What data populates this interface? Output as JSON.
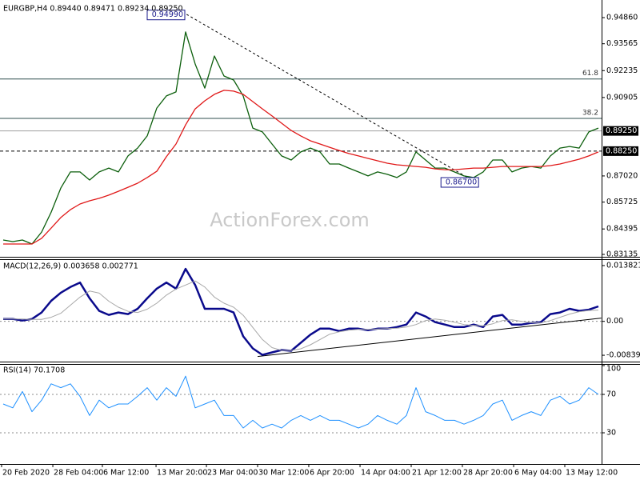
{
  "chart_data": [
    {
      "type": "line",
      "title": "EURGBP,H4  0.89440 0.89471 0.89234 0.89250",
      "xlim": [
        0,
        62
      ],
      "ylim": [
        0.83056,
        0.95652
      ],
      "yticks": [
        {
          "value": 0.9486,
          "label": "0.94860"
        },
        0.93565,
        0.92235,
        0.90905,
        {
          "value": 0.8702,
          "label": "0.87020"
        },
        0.85725,
        0.84395,
        0.83135
      ],
      "series": [
        {
          "color": "#0b5e0b",
          "values": [
            0.8385,
            0.8377,
            0.8385,
            0.8365,
            0.8424,
            0.8523,
            0.8642,
            0.8722,
            0.8722,
            0.8682,
            0.8722,
            0.8741,
            0.8722,
            0.8801,
            0.884,
            0.89,
            0.9038,
            0.9098,
            0.9118,
            0.9415,
            0.9256,
            0.9137,
            0.9296,
            0.9197,
            0.9177,
            0.9098,
            0.8939,
            0.892,
            0.886,
            0.8801,
            0.8781,
            0.8821,
            0.884,
            0.8821,
            0.8761,
            0.8761,
            0.8741,
            0.8722,
            0.8702,
            0.8722,
            0.871,
            0.8694,
            0.8722,
            0.8821,
            0.8781,
            0.8741,
            0.8741,
            0.8722,
            0.8702,
            0.8694,
            0.8722,
            0.8781,
            0.8781,
            0.8722,
            0.8741,
            0.8749,
            0.8741,
            0.8801,
            0.884,
            0.8848,
            0.884,
            0.892,
            0.8939
          ]
        },
        {
          "color": "#e01818",
          "values": [
            0.8365,
            0.8365,
            0.8365,
            0.8365,
            0.8393,
            0.8444,
            0.8496,
            0.8535,
            0.8563,
            0.8579,
            0.8591,
            0.8607,
            0.8626,
            0.8646,
            0.8666,
            0.8694,
            0.8725,
            0.8797,
            0.886,
            0.8955,
            0.9034,
            0.9074,
            0.9106,
            0.9126,
            0.9122,
            0.9106,
            0.907,
            0.9034,
            0.8999,
            0.8963,
            0.8927,
            0.89,
            0.8876,
            0.886,
            0.8844,
            0.8828,
            0.8813,
            0.8801,
            0.8789,
            0.8777,
            0.8765,
            0.8757,
            0.8753,
            0.8749,
            0.8745,
            0.8737,
            0.8733,
            0.8733,
            0.8737,
            0.8741,
            0.8741,
            0.8745,
            0.8749,
            0.8749,
            0.8749,
            0.8749,
            0.8749,
            0.8753,
            0.8761,
            0.8773,
            0.8785,
            0.8801,
            0.8821
          ]
        }
      ],
      "hlines": [
        {
          "value": 0.9182,
          "label": "61.8",
          "color": "#2f4f4f",
          "dash": false,
          "place": "inside"
        },
        {
          "value": 0.8987,
          "label": "38.2",
          "color": "#2f4f4f",
          "dash": false,
          "place": "inside"
        },
        {
          "value": 0.8925,
          "label": "0.89250",
          "color": "#a0a0a0",
          "dash": false,
          "place": "axis"
        },
        {
          "value": 0.8825,
          "label": "0.88250",
          "color": "#000000",
          "dash": true,
          "place": "axis"
        }
      ],
      "annotations": [
        {
          "x": 19,
          "value": 0.9499,
          "label": "0.94990"
        },
        {
          "x": 49.6,
          "value": 0.867,
          "label": "0.86700"
        }
      ],
      "trendlines": [
        {
          "from": [
            19.1,
            0.9502
          ],
          "to": [
            48.8,
            0.8682
          ],
          "dash": true
        }
      ],
      "watermark": "ActionForex.com"
    },
    {
      "type": "line",
      "title": "MACD(12,26,9) 0.003658 0.002771",
      "xlim": [
        0,
        62
      ],
      "ylim": [
        -0.00997,
        0.0148
      ],
      "yticks": [
        0.013821,
        {
          "value": 0,
          "label": "0.00"
        },
        -0.008397
      ],
      "levels": [
        0
      ],
      "series": [
        {
          "color": "#0a0a8c",
          "width": 2.5,
          "values": [
            0.0006,
            0.0006,
            0.0002,
            0.0006,
            0.0022,
            0.0051,
            0.0071,
            0.0085,
            0.0096,
            0.0057,
            0.0026,
            0.0016,
            0.0022,
            0.0018,
            0.0031,
            0.0057,
            0.0081,
            0.0096,
            0.0081,
            0.013,
            0.009,
            0.0031,
            0.0031,
            0.0031,
            0.0022,
            -0.0037,
            -0.0067,
            -0.0083,
            -0.0077,
            -0.0071,
            -0.0073,
            -0.0053,
            -0.0033,
            -0.0018,
            -0.0018,
            -0.0024,
            -0.0018,
            -0.0018,
            -0.0022,
            -0.0018,
            -0.0018,
            -0.0014,
            -0.0008,
            0.0022,
            0.0012,
            -0.0002,
            -0.0008,
            -0.0014,
            -0.0014,
            -0.0008,
            -0.0014,
            0.0012,
            0.0016,
            -0.0008,
            -0.0008,
            -0.0004,
            -0.0002,
            0.0018,
            0.0022,
            0.0031,
            0.0026,
            0.0029,
            0.0037
          ]
        },
        {
          "color": "#a8a8a8",
          "width": 1,
          "values": [
            0.0006,
            0.0006,
            0.0006,
            0.0005,
            0.0005,
            0.001,
            0.002,
            0.004,
            0.006,
            0.0075,
            0.007,
            0.005,
            0.0035,
            0.0025,
            0.0022,
            0.003,
            0.0045,
            0.0065,
            0.008,
            0.009,
            0.01,
            0.0085,
            0.006,
            0.0045,
            0.0035,
            0.0015,
            -0.0015,
            -0.0045,
            -0.0065,
            -0.0072,
            -0.0072,
            -0.0068,
            -0.0058,
            -0.0045,
            -0.0032,
            -0.0026,
            -0.0022,
            -0.002,
            -0.002,
            -0.0019,
            -0.0018,
            -0.0017,
            -0.0014,
            -0.0008,
            0.0002,
            0.0006,
            0.0003,
            -0.0002,
            -0.0008,
            -0.001,
            -0.0011,
            -0.0006,
            0.0002,
            0.0004,
            0.0,
            -0.0003,
            -0.0004,
            0.0002,
            0.001,
            0.0018,
            0.0024,
            0.0027,
            0.0028
          ]
        }
      ],
      "trendlines": [
        {
          "from": [
            26.5,
            -0.0087
          ],
          "to": [
            62.3,
            0.0008
          ],
          "dash": false
        }
      ]
    },
    {
      "type": "line",
      "title": "RSI(14) 70.1708",
      "xlim": [
        0,
        62
      ],
      "ylim": [
        0,
        100
      ],
      "yticks": [
        100,
        70,
        30
      ],
      "levels": [
        70,
        30
      ],
      "series": [
        {
          "color": "#1e90ff",
          "width": 1,
          "values": [
            60,
            56,
            73,
            52,
            64,
            81,
            77,
            81,
            68,
            48,
            64,
            56,
            60,
            60,
            68,
            77,
            64,
            77,
            68,
            89,
            56,
            60,
            64,
            48,
            48,
            35,
            43,
            35,
            39,
            35,
            43,
            48,
            43,
            48,
            43,
            43,
            39,
            35,
            39,
            48,
            43,
            39,
            48,
            77,
            52,
            48,
            43,
            43,
            39,
            43,
            48,
            60,
            64,
            43,
            48,
            52,
            48,
            64,
            68,
            60,
            64,
            77,
            70
          ]
        }
      ],
      "xticks": [
        {
          "value": -0.17,
          "label": "20 Feb 2020"
        },
        {
          "value": 5.17,
          "label": "28 Feb 04:00"
        },
        {
          "value": 10.33,
          "label": "6 Mar 12:00"
        },
        {
          "value": 15.92,
          "label": "13 Mar 20:00"
        },
        {
          "value": 21.17,
          "label": "23 Mar 04:00"
        },
        {
          "value": 26.5,
          "label": "30 Mar 12:00"
        },
        {
          "value": 31.83,
          "label": "6 Apr 20:00"
        },
        {
          "value": 37.17,
          "label": "14 Apr 04:00"
        },
        {
          "value": 42.5,
          "label": "21 Apr 12:00"
        },
        {
          "value": 47.83,
          "label": "28 Apr 20:00"
        },
        {
          "value": 53.17,
          "label": "6 May 04:00"
        },
        {
          "value": 58.5,
          "label": "13 May 12:00"
        }
      ]
    }
  ]
}
